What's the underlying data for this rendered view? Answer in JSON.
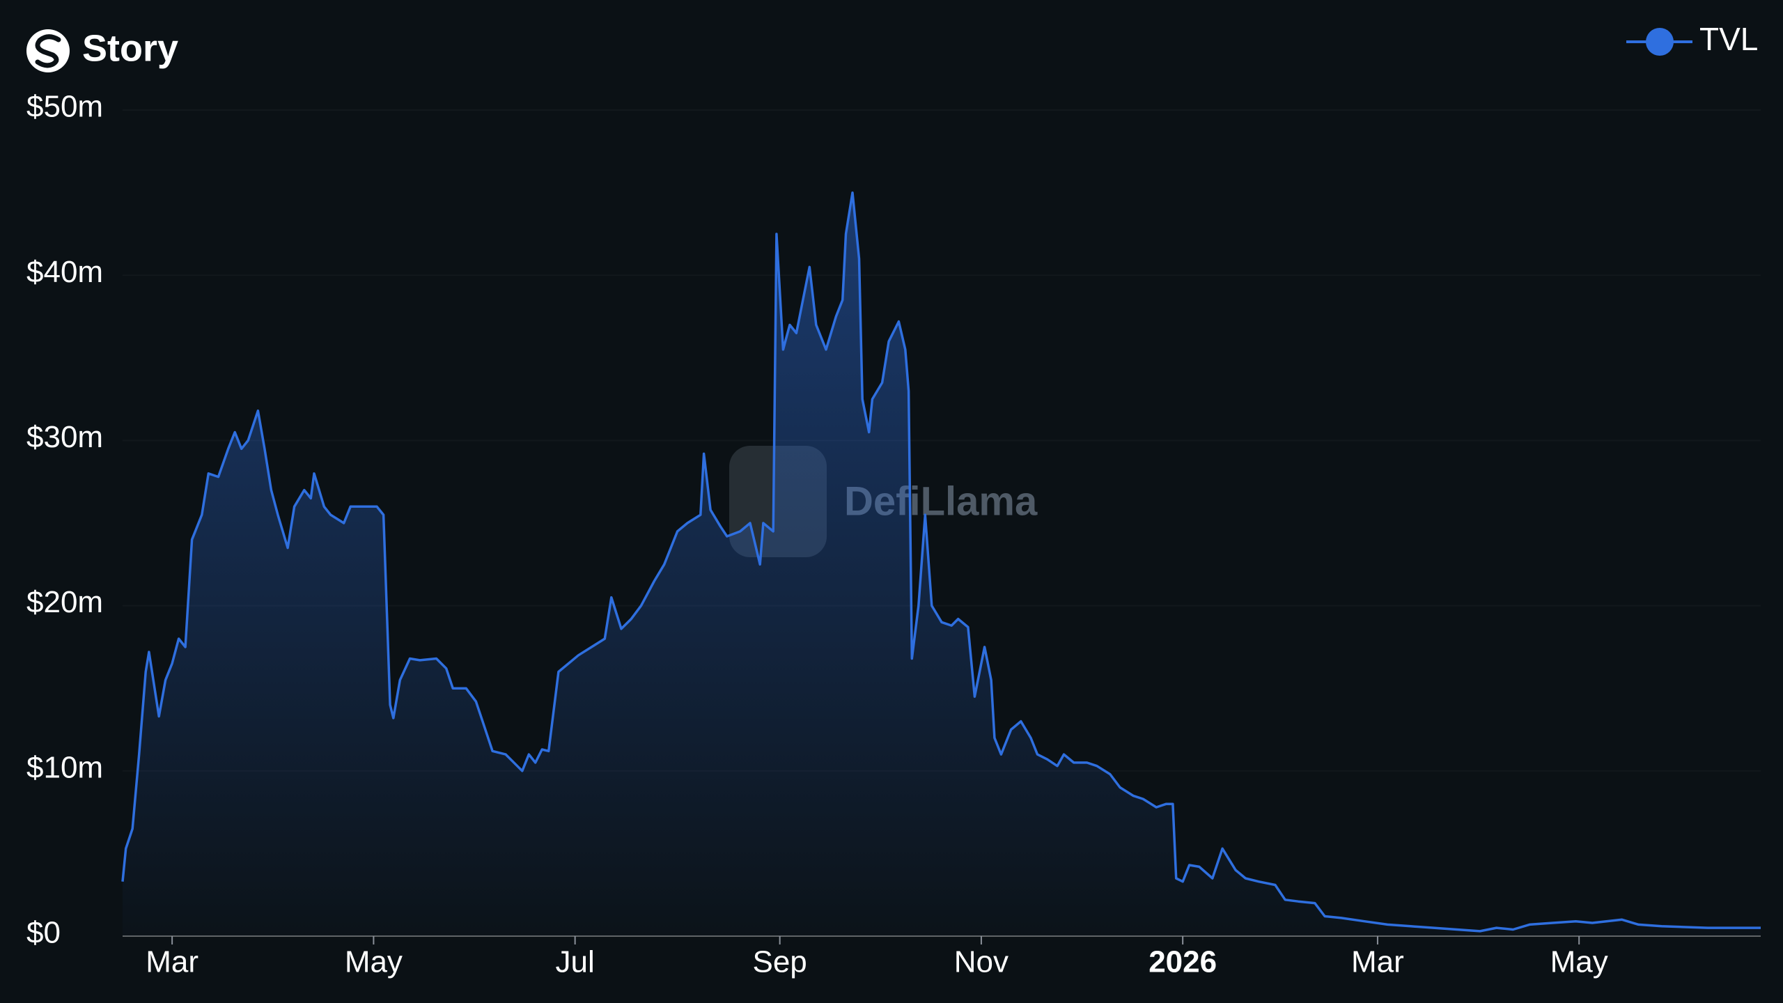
{
  "header": {
    "title": "Story"
  },
  "chart_data": {
    "type": "line",
    "watermark": "DefiLlama",
    "x": [
      -15,
      -14,
      -12,
      -10,
      -8,
      -7,
      -4,
      -2,
      0,
      2,
      4,
      6,
      9,
      11,
      14,
      17,
      19,
      21,
      23,
      26,
      28,
      30,
      32,
      35,
      37,
      40,
      42,
      43,
      46,
      48,
      52,
      54,
      58,
      62,
      64,
      66,
      67,
      69,
      72,
      75,
      80,
      83,
      85,
      89,
      92,
      94,
      97,
      101,
      106,
      108,
      110,
      112,
      114,
      117,
      120,
      123,
      127,
      131,
      133,
      136,
      139,
      142,
      146,
      149,
      153,
      156,
      160,
      161,
      163,
      166,
      168,
      172,
      175,
      178,
      179,
      182,
      183,
      185,
      187,
      189,
      191,
      193,
      195,
      198,
      201,
      203,
      204,
      206,
      208,
      209,
      211,
      212,
      215,
      217,
      220,
      222,
      223,
      224,
      226,
      228,
      230,
      233,
      236,
      238,
      241,
      243,
      246,
      248,
      249,
      251,
      254,
      257,
      260,
      262,
      265,
      268,
      270,
      273,
      277,
      280,
      284,
      287,
      291,
      294,
      298,
      301,
      303,
      304,
      306,
      308,
      311,
      315,
      318,
      322,
      325,
      329,
      334,
      337,
      341,
      346,
      349,
      354,
      361,
      368,
      375,
      382,
      389,
      396,
      401,
      406,
      411,
      418,
      425,
      430,
      439,
      444,
      451,
      465,
      481
    ],
    "series": [
      {
        "name": "TVL",
        "color": "#2f6fdf",
        "values": [
          3.3,
          5.3,
          6.5,
          11,
          16,
          17.2,
          13.3,
          15.5,
          16.5,
          18,
          17.5,
          24,
          25.5,
          28,
          27.8,
          29.5,
          30.5,
          29.5,
          30,
          31.8,
          29.5,
          27,
          25.5,
          23.5,
          26,
          27,
          26.5,
          28,
          26,
          25.5,
          25,
          26,
          26,
          26,
          25.5,
          14,
          13.2,
          15.5,
          16.8,
          16.7,
          16.8,
          16.2,
          15,
          15,
          14.2,
          13,
          11.2,
          11,
          10,
          11,
          10.5,
          11.3,
          11.2,
          16,
          16.5,
          17,
          17.5,
          18,
          20.5,
          18.6,
          19.2,
          20,
          21.5,
          22.5,
          24.5,
          25,
          25.5,
          29.2,
          25.8,
          24.8,
          24.2,
          24.5,
          25,
          22.5,
          25,
          24.5,
          42.5,
          35.5,
          37,
          36.5,
          38.5,
          40.5,
          37,
          35.5,
          37.5,
          38.5,
          42.5,
          45,
          41,
          32.5,
          30.5,
          32.5,
          33.5,
          36,
          37.2,
          35.5,
          33,
          16.8,
          20,
          25.5,
          20,
          19,
          18.8,
          19.2,
          18.7,
          14.5,
          17.5,
          15.5,
          12,
          11,
          12.5,
          13,
          12,
          11,
          10.7,
          10.3,
          11,
          10.5,
          10.5,
          10.3,
          9.8,
          9,
          8.5,
          8.3,
          7.8,
          8,
          8,
          3.5,
          3.3,
          4.3,
          4.2,
          3.5,
          5.3,
          4,
          3.5,
          3.3,
          3.1,
          2.2,
          2.1,
          2,
          1.2,
          1.1,
          0.9,
          0.7,
          0.6,
          0.5,
          0.4,
          0.3,
          0.5,
          0.4,
          0.7,
          0.8,
          0.9,
          0.8,
          1.0,
          0.7,
          0.6,
          0.5,
          0.5
        ]
      }
    ],
    "xlim": [
      -15,
      481
    ],
    "xticks": [
      {
        "value": 0,
        "label": "Mar"
      },
      {
        "value": 61,
        "label": "May"
      },
      {
        "value": 122,
        "label": "Jul"
      },
      {
        "value": 184,
        "label": "Sep"
      },
      {
        "value": 245,
        "label": "Nov"
      },
      {
        "value": 306,
        "label": "2026"
      },
      {
        "value": 365,
        "label": "Mar"
      },
      {
        "value": 426,
        "label": "May"
      }
    ],
    "ylim": [
      0,
      50
    ],
    "yticks": [
      {
        "value": 0,
        "label": "$0"
      },
      {
        "value": 10,
        "label": "$10m"
      },
      {
        "value": 20,
        "label": "$20m"
      },
      {
        "value": 30,
        "label": "$30m"
      },
      {
        "value": 40,
        "label": "$40m"
      },
      {
        "value": 50,
        "label": "$50m"
      }
    ],
    "legend": "top-right"
  }
}
